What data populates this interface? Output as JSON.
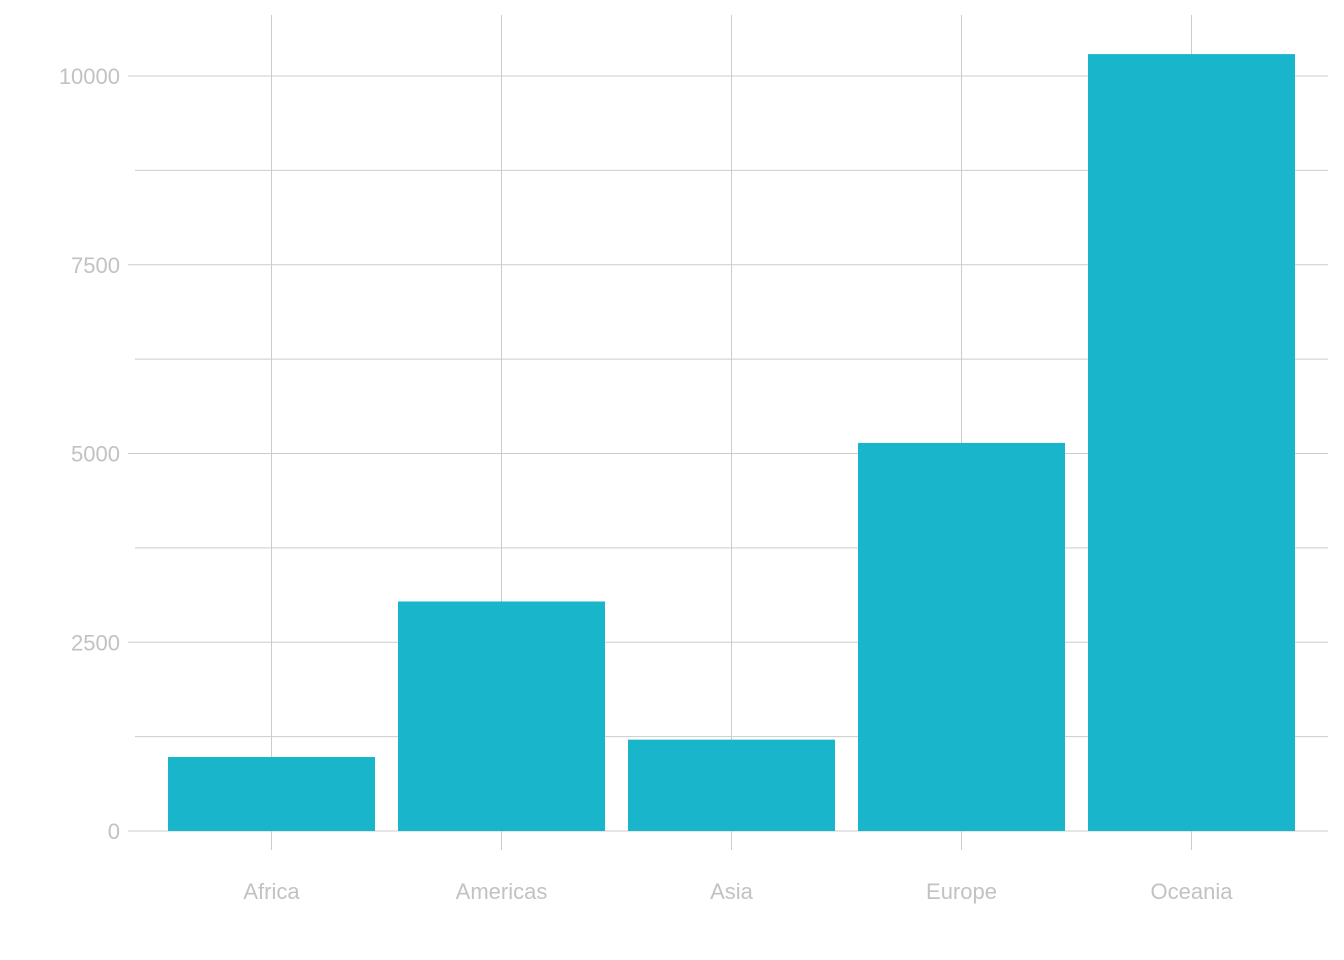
{
  "chart_data": {
    "type": "bar",
    "categories": [
      "Africa",
      "Americas",
      "Asia",
      "Europe",
      "Oceania"
    ],
    "values": [
      980,
      3040,
      1210,
      5140,
      10290
    ],
    "title": "",
    "xlabel": "",
    "ylabel": "",
    "ylim": [
      0,
      10800
    ],
    "yticks": [
      0,
      2500,
      5000,
      7500,
      10000
    ],
    "ytick_labels": [
      "0",
      "2500",
      "5000",
      "7500",
      "10000"
    ],
    "grid": true,
    "legend": "none",
    "colors": {
      "bar": "#18b5cb",
      "grid": "#cccccc",
      "tick_text": "#c2c2c2"
    }
  }
}
